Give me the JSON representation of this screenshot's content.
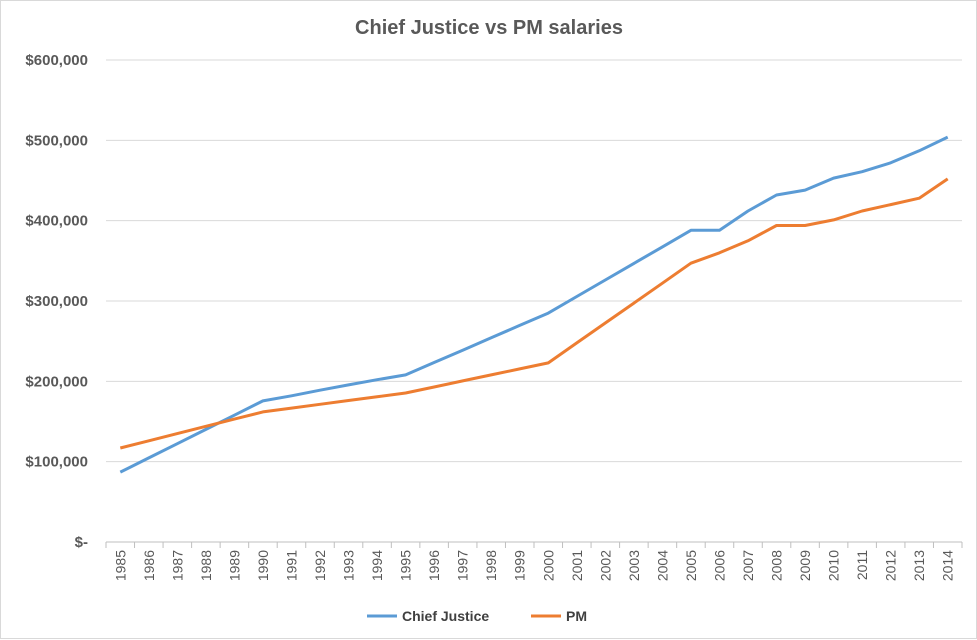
{
  "chart_data": {
    "type": "line",
    "title": "Chief Justice vs PM salaries",
    "xlabel": "",
    "ylabel": "",
    "ylim": [
      0,
      600000
    ],
    "yticks": [
      0,
      100000,
      200000,
      300000,
      400000,
      500000,
      600000
    ],
    "ytick_labels": [
      "$-",
      "$100,000",
      "$200,000",
      "$300,000",
      "$400,000",
      "$500,000",
      "$600,000"
    ],
    "grid": true,
    "legend": "bottom",
    "categories": [
      "1985",
      "1986",
      "1987",
      "1988",
      "1989",
      "1990",
      "1991",
      "1992",
      "1993",
      "1994",
      "1995",
      "1996",
      "1997",
      "1998",
      "1999",
      "2000",
      "2001",
      "2002",
      "2003",
      "2004",
      "2005",
      "2006",
      "2007",
      "2008",
      "2009",
      "2010",
      "2011",
      "2012",
      "2013",
      "2014"
    ],
    "series": [
      {
        "name": "Chief Justice",
        "color": "#5b9bd5",
        "values": [
          87000,
          104700,
          122400,
          140200,
          157900,
          175600,
          182000,
          189000,
          195500,
          202000,
          208000,
          223400,
          238800,
          254200,
          269600,
          285000,
          305600,
          326200,
          346800,
          367400,
          388000,
          388000,
          412000,
          432000,
          438000,
          453000,
          461000,
          472000,
          487000,
          504000
        ]
      },
      {
        "name": "PM",
        "color": "#ed7d31",
        "values": [
          117000,
          126000,
          135000,
          144000,
          153000,
          162000,
          166700,
          171400,
          176100,
          180800,
          185500,
          193000,
          200500,
          208000,
          215500,
          223000,
          247800,
          272600,
          297400,
          322200,
          347000,
          360000,
          375000,
          394000,
          394000,
          401000,
          412000,
          420000,
          428000,
          452000
        ]
      }
    ]
  }
}
